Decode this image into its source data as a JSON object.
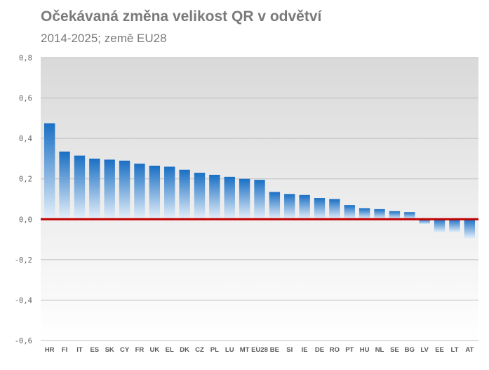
{
  "header": {
    "title": "Očekávaná změna velikost QR v odvětví",
    "subtitle": "2014-2025; země EU28"
  },
  "colors": {
    "bar_top": "#1a6fc4",
    "bar_bottom": "#e6f0fa",
    "zero_line": "#c00000",
    "plot_bg_top": "#d9d9d9",
    "plot_bg_bottom": "#ffffff",
    "gridline": "#bfbfbf",
    "text": "#7a7a7a"
  },
  "chart_data": {
    "type": "bar",
    "title": "Očekávaná změna velikost QR v odvětví",
    "subtitle": "2014-2025; země EU28",
    "xlabel": "",
    "ylabel": "",
    "ylim": [
      -0.6,
      0.8
    ],
    "yticks": [
      0.8,
      0.6,
      0.4,
      0.2,
      0.0,
      -0.2,
      -0.4,
      -0.6
    ],
    "ytick_labels": [
      "0,8",
      "0,6",
      "0,4",
      "0,2",
      "0,0",
      "-0,2",
      "-0,4",
      "-0,6"
    ],
    "grid": true,
    "legend": "none",
    "categories": [
      "HR",
      "FI",
      "IT",
      "ES",
      "SK",
      "CY",
      "FR",
      "UK",
      "EL",
      "DK",
      "CZ",
      "PL",
      "LU",
      "MT",
      "EU28",
      "BE",
      "SI",
      "IE",
      "DE",
      "RO",
      "PT",
      "HU",
      "NL",
      "SE",
      "BG",
      "LV",
      "EE",
      "LT",
      "AT"
    ],
    "values": [
      0.475,
      0.335,
      0.315,
      0.3,
      0.295,
      0.29,
      0.275,
      0.265,
      0.26,
      0.245,
      0.23,
      0.22,
      0.21,
      0.2,
      0.195,
      0.135,
      0.125,
      0.12,
      0.105,
      0.1,
      0.07,
      0.055,
      0.05,
      0.04,
      0.035,
      -0.025,
      -0.065,
      -0.065,
      -0.095
    ]
  }
}
